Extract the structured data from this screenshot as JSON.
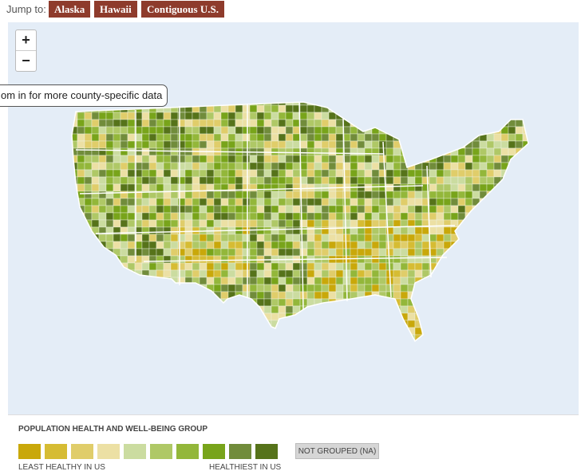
{
  "nav": {
    "label": "Jump to:",
    "buttons": [
      "Alaska",
      "Hawaii",
      "Contiguous U.S."
    ]
  },
  "zoom": {
    "in": "+",
    "out": "−"
  },
  "tooltip": "om in for more county-specific data",
  "legend": {
    "title": "POPULATION HEALTH AND WELL-BEING GROUP",
    "colors": [
      "#c9a80a",
      "#d6bc33",
      "#e0cd6a",
      "#ece0a4",
      "#cbdca0",
      "#afc866",
      "#93b73a",
      "#78a41a",
      "#718c3b",
      "#56731a"
    ],
    "low": "LEAST HEALTHY IN US",
    "high": "HEALTHIEST IN US",
    "na": "NOT GROUPED (NA)"
  }
}
